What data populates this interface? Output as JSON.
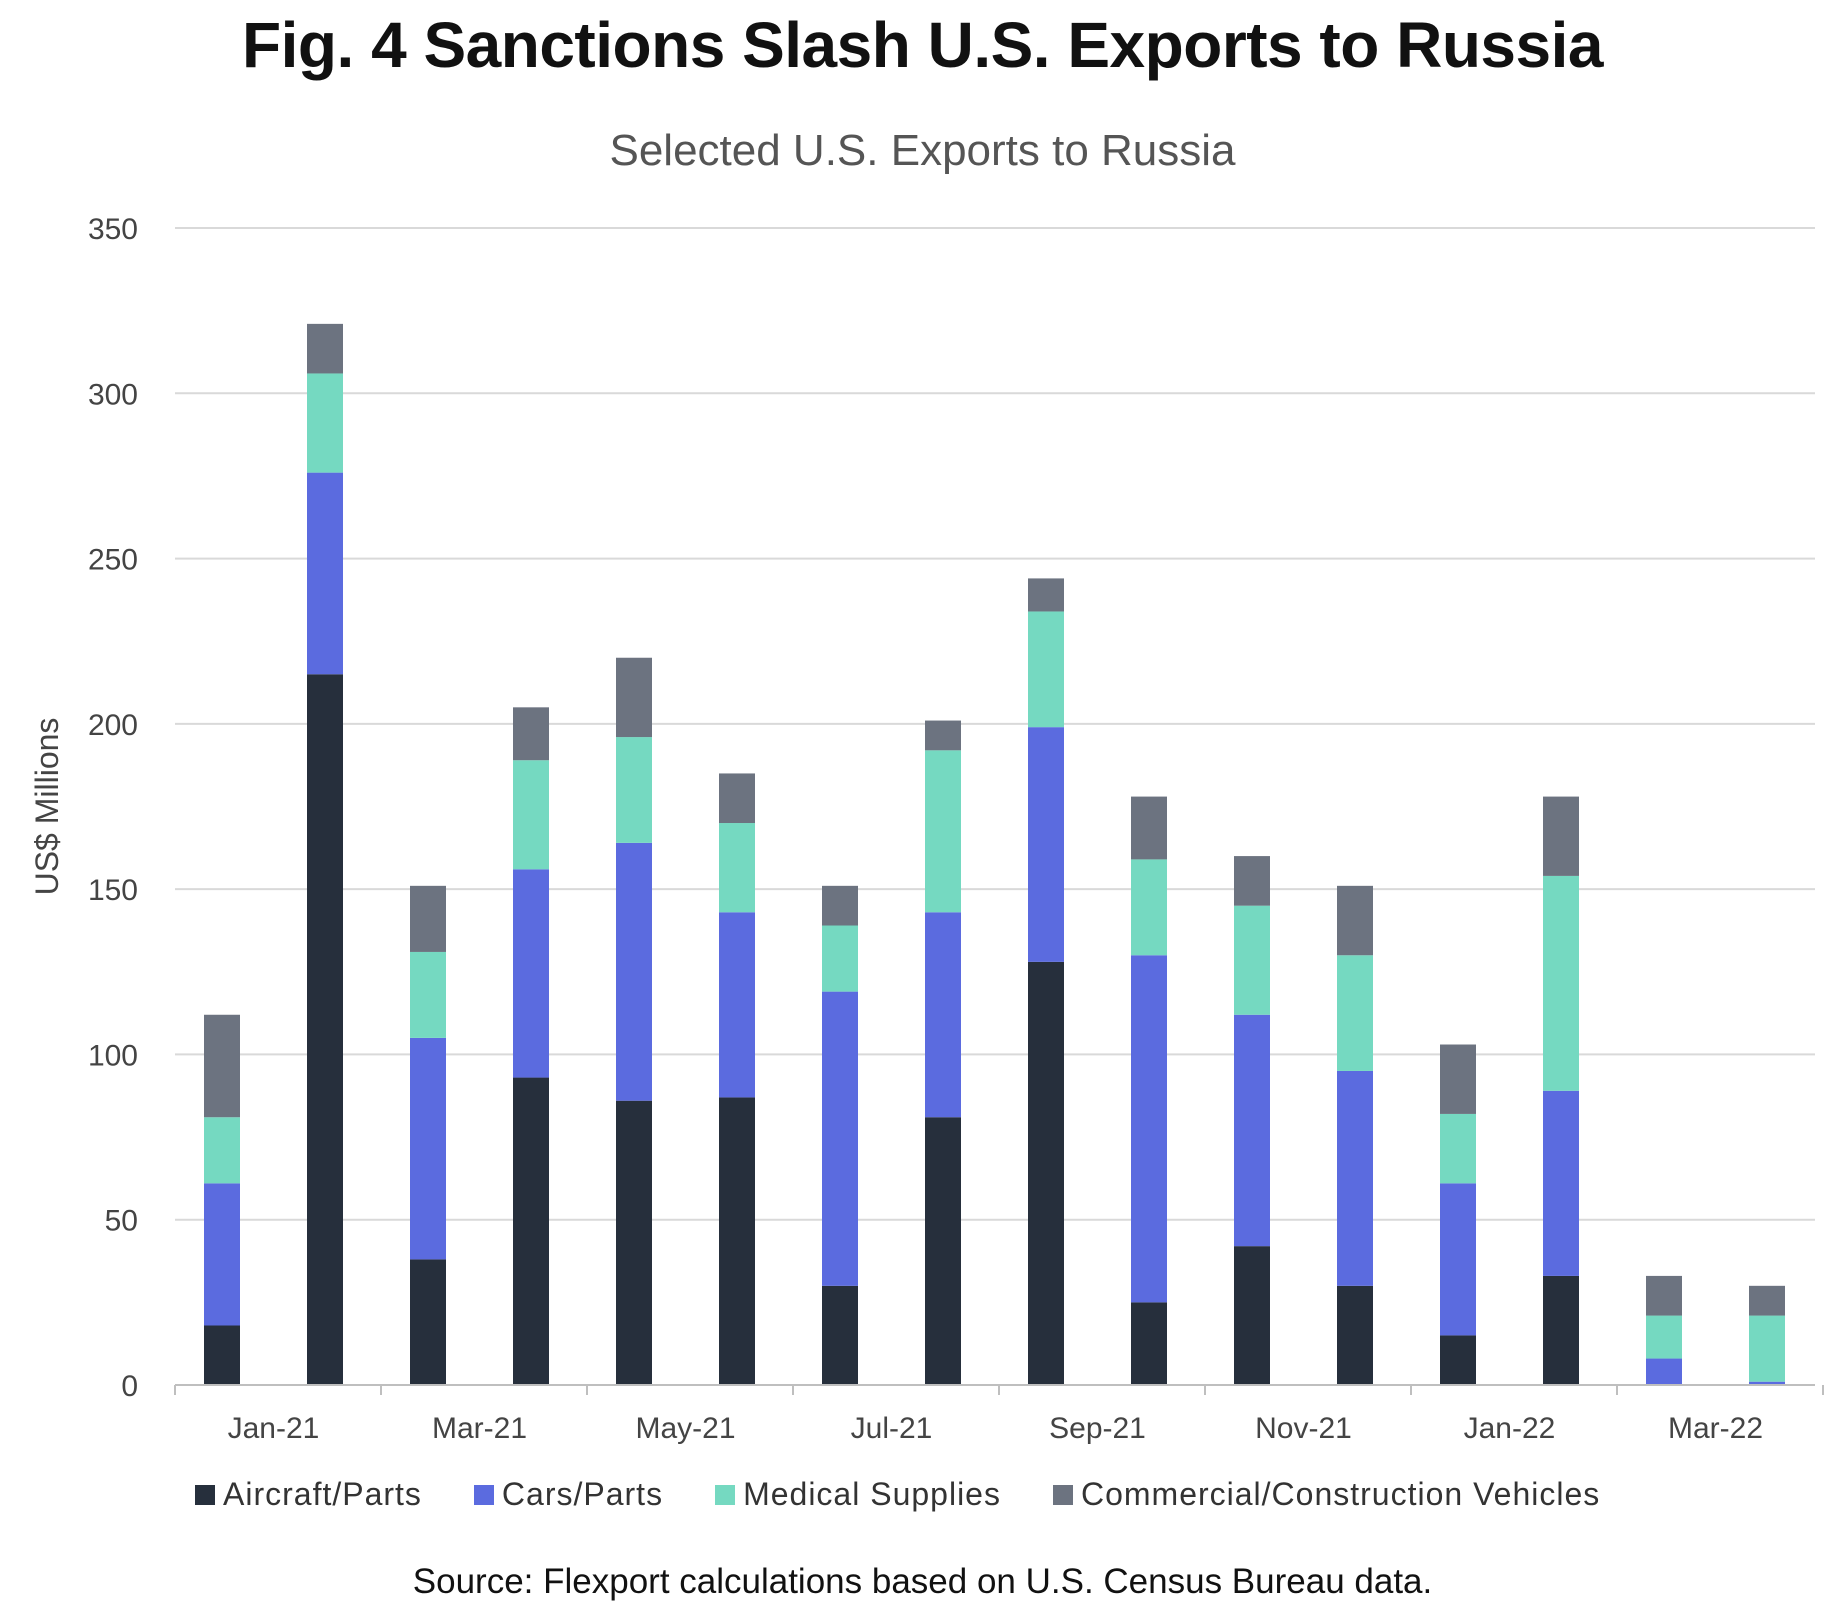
{
  "title": "Fig. 4 Sanctions Slash U.S. Exports to Russia",
  "subtitle": "Selected U.S. Exports to Russia",
  "source": "Source: Flexport calculations based on U.S. Census Bureau data.",
  "colors": {
    "aircraft": "#262f3c",
    "cars": "#5b6bdf",
    "medical": "#75d9c1",
    "commercial": "#6c7380",
    "grid": "#d9d9d9",
    "axis": "#bfbfbf"
  },
  "chart_data": {
    "type": "bar",
    "stacked": true,
    "title": "Selected U.S. Exports to Russia",
    "xlabel": "",
    "ylabel": "US$ Millions",
    "ylim": [
      0,
      350
    ],
    "yticks": [
      0,
      50,
      100,
      150,
      200,
      250,
      300,
      350
    ],
    "categories": [
      "Jan-21",
      "Feb-21",
      "Mar-21",
      "Apr-21",
      "May-21",
      "Jun-21",
      "Jul-21",
      "Aug-21",
      "Sep-21",
      "Oct-21",
      "Nov-21",
      "Dec-21",
      "Jan-22",
      "Feb-22",
      "Mar-22",
      "Apr-22"
    ],
    "tick_labels": [
      "Jan-21",
      "Mar-21",
      "May-21",
      "Jul-21",
      "Sep-21",
      "Nov-21",
      "Jan-22",
      "Mar-22"
    ],
    "legend_position": "bottom",
    "grid": true,
    "series": [
      {
        "name": "Aircraft/Parts",
        "color_key": "aircraft",
        "values": [
          18,
          215,
          38,
          93,
          86,
          87,
          30,
          81,
          128,
          25,
          42,
          30,
          15,
          33,
          0,
          0
        ]
      },
      {
        "name": "Cars/Parts",
        "color_key": "cars",
        "values": [
          43,
          61,
          67,
          63,
          78,
          56,
          89,
          62,
          71,
          105,
          70,
          65,
          46,
          56,
          8,
          1
        ]
      },
      {
        "name": "Medical Supplies",
        "color_key": "medical",
        "values": [
          20,
          30,
          26,
          33,
          32,
          27,
          20,
          49,
          35,
          29,
          33,
          35,
          21,
          65,
          13,
          20
        ]
      },
      {
        "name": "Commercial/Construction Vehicles",
        "color_key": "commercial",
        "values": [
          31,
          15,
          20,
          16,
          24,
          15,
          12,
          9,
          10,
          19,
          15,
          21,
          21,
          24,
          12,
          9
        ]
      }
    ]
  }
}
